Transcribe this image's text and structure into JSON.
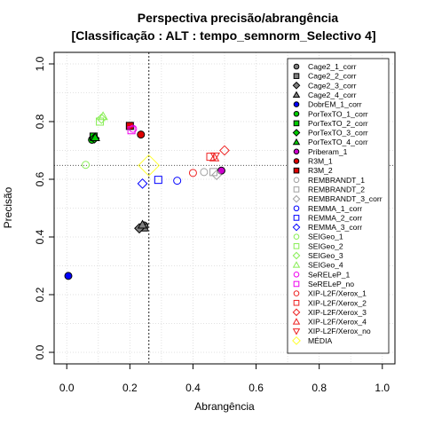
{
  "chart_data": {
    "type": "scatter",
    "title": "Perspectiva precisão/abrangência",
    "subtitle": "[Classificação : ALT : tempo_semnorm_Selectivo 4]",
    "xlabel": "Abrangência",
    "ylabel": "Precisão",
    "xlim": [
      -0.04,
      1.04
    ],
    "ylim": [
      -0.04,
      1.04
    ],
    "xticks": [
      "0.0",
      "0.2",
      "0.4",
      "0.6",
      "0.8",
      "1.0"
    ],
    "yticks": [
      "0.0",
      "0.2",
      "0.4",
      "0.6",
      "0.8",
      "1.0"
    ],
    "grid": true,
    "legend_position": "top-right",
    "reference_lines": {
      "x": 0.26,
      "y": 0.648
    },
    "series": [
      {
        "name": "Cage2_1_corr",
        "shape": "circle",
        "fill": "#808080",
        "stroke": "#000000",
        "x": 0.245,
        "y": 0.44
      },
      {
        "name": "Cage2_2_corr",
        "shape": "square",
        "fill": "#808080",
        "stroke": "#000000",
        "x": 0.245,
        "y": 0.433
      },
      {
        "name": "Cage2_3_corr",
        "shape": "diamond",
        "fill": "#808080",
        "stroke": "#000000",
        "x": 0.23,
        "y": 0.43
      },
      {
        "name": "Cage2_4_corr",
        "shape": "triangle",
        "fill": "#808080",
        "stroke": "#000000",
        "x": 0.24,
        "y": 0.442
      },
      {
        "name": "DobrEM_1_corr",
        "shape": "circle",
        "fill": "#0000ff",
        "stroke": "#000000",
        "x": 0.005,
        "y": 0.265
      },
      {
        "name": "PorTexTO_1_corr",
        "shape": "circle",
        "fill": "#00cc00",
        "stroke": "#000000",
        "x": 0.08,
        "y": 0.737
      },
      {
        "name": "PorTexTO_2_corr",
        "shape": "square",
        "fill": "#00cc00",
        "stroke": "#000000",
        "x": 0.085,
        "y": 0.748
      },
      {
        "name": "PorTexTO_3_corr",
        "shape": "diamond",
        "fill": "#00cc00",
        "stroke": "#000000",
        "x": 0.088,
        "y": 0.742
      },
      {
        "name": "PorTexTO_4_corr",
        "shape": "triangle",
        "fill": "#00cc00",
        "stroke": "#000000",
        "x": 0.09,
        "y": 0.745
      },
      {
        "name": "Priberam_1",
        "shape": "circle",
        "fill": "#cc00cc",
        "stroke": "#000000",
        "x": 0.49,
        "y": 0.63
      },
      {
        "name": "R3M_1",
        "shape": "circle",
        "fill": "#dd0000",
        "stroke": "#000000",
        "x": 0.235,
        "y": 0.755
      },
      {
        "name": "R3M_2",
        "shape": "square",
        "fill": "#dd0000",
        "stroke": "#000000",
        "x": 0.2,
        "y": 0.785
      },
      {
        "name": "REMBRANDT_1",
        "shape": "circle",
        "fill": "none",
        "stroke": "#a0a0a0",
        "x": 0.435,
        "y": 0.625
      },
      {
        "name": "REMBRANDT_2",
        "shape": "square",
        "fill": "none",
        "stroke": "#a0a0a0",
        "x": 0.465,
        "y": 0.625
      },
      {
        "name": "REMBRANDT_3_corr",
        "shape": "diamond",
        "fill": "none",
        "stroke": "#a0a0a0",
        "x": 0.475,
        "y": 0.615
      },
      {
        "name": "REMMA_1_corr",
        "shape": "circle",
        "fill": "none",
        "stroke": "#0000ff",
        "x": 0.35,
        "y": 0.595
      },
      {
        "name": "REMMA_2_corr",
        "shape": "square",
        "fill": "none",
        "stroke": "#0000ff",
        "x": 0.29,
        "y": 0.598
      },
      {
        "name": "REMMA_3_corr",
        "shape": "diamond",
        "fill": "none",
        "stroke": "#0000ff",
        "x": 0.24,
        "y": 0.585
      },
      {
        "name": "SEIGeo_1",
        "shape": "circle",
        "fill": "none",
        "stroke": "#88ee55",
        "x": 0.06,
        "y": 0.65
      },
      {
        "name": "SEIGeo_2",
        "shape": "square",
        "fill": "none",
        "stroke": "#88ee55",
        "x": 0.105,
        "y": 0.8
      },
      {
        "name": "SEIGeo_3",
        "shape": "diamond",
        "fill": "none",
        "stroke": "#88ee55",
        "x": 0.11,
        "y": 0.81
      },
      {
        "name": "SEIGeo_4",
        "shape": "triangle",
        "fill": "none",
        "stroke": "#88ee55",
        "x": 0.115,
        "y": 0.818
      },
      {
        "name": "SeRELeP_1",
        "shape": "circle",
        "fill": "none",
        "stroke": "#ee00ee",
        "x": 0.21,
        "y": 0.775
      },
      {
        "name": "SeRELeP_no",
        "shape": "square",
        "fill": "none",
        "stroke": "#ee00ee",
        "x": 0.205,
        "y": 0.77
      },
      {
        "name": "XIP-L2F/Xerox_1",
        "shape": "circle",
        "fill": "none",
        "stroke": "#ee2222",
        "x": 0.4,
        "y": 0.622
      },
      {
        "name": "XIP-L2F/Xerox_2",
        "shape": "square",
        "fill": "none",
        "stroke": "#ee2222",
        "x": 0.455,
        "y": 0.678
      },
      {
        "name": "XIP-L2F/Xerox_3",
        "shape": "diamond",
        "fill": "none",
        "stroke": "#ee2222",
        "x": 0.5,
        "y": 0.7
      },
      {
        "name": "XIP-L2F/Xerox_4",
        "shape": "triangle",
        "fill": "none",
        "stroke": "#ee2222",
        "x": 0.468,
        "y": 0.675
      },
      {
        "name": "XIP-L2F/Xerox_no",
        "shape": "triangle-down",
        "fill": "none",
        "stroke": "#ee2222",
        "x": 0.47,
        "y": 0.68
      },
      {
        "name": "MÉDIA",
        "shape": "diamond-big",
        "fill": "none",
        "stroke": "#ffff33",
        "x": 0.26,
        "y": 0.648
      }
    ]
  }
}
